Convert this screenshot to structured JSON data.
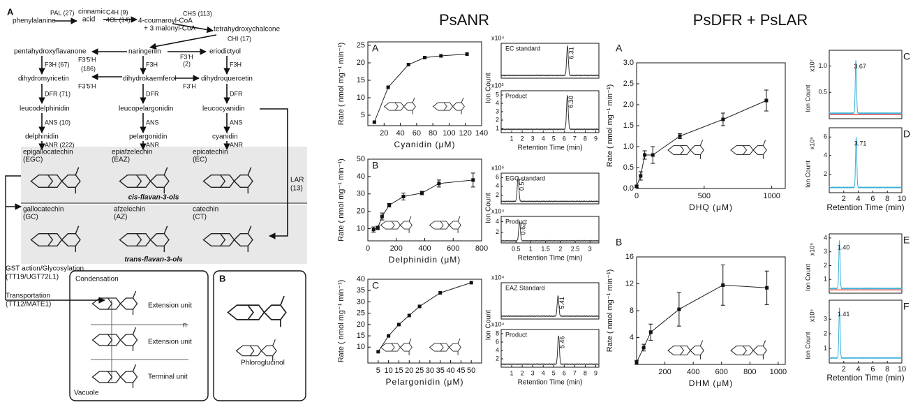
{
  "headings": {
    "anr": "PsANR",
    "dfr_lar": "PsDFR + PsLAR"
  },
  "pathway": {
    "labels": [
      "A",
      "phenylalanine",
      "PAL (27)",
      "cinnamic",
      "acid",
      "C4H (9)",
      "4CL (14)",
      "4-coumaroyl-CoA",
      "+ 3 malonyl-CoA",
      "CHS (113)",
      "tetrahydroxychalcone",
      "CHI (17)",
      "pentahydroxyflavanone",
      "naringenin",
      "eriodictyol",
      "F3'5'H",
      "F3'H",
      "(2)",
      "F3H (67)",
      "(186)",
      "F3H",
      "F3H",
      "dihydromyricetin",
      "dihydrokaemferol",
      "dihydroquercetin",
      "F3'5'H",
      "F3'H",
      "DFR (71)",
      "DFR",
      "DFR",
      "leucodelphinidin",
      "leucopelargonidin",
      "leucocyanidin",
      "ANS (10)",
      "ANS",
      "ANS",
      "delphinidin",
      "pelargonidin",
      "cyanidin",
      "ANR (222)",
      "ANR",
      "ANR",
      "epigallocatechin",
      "(EGC)",
      "epiafzelechin",
      "(EAZ)",
      "epicatechin",
      "(EC)",
      "cis-flavan-3-ols",
      "LAR",
      "(13)",
      "gallocatechin",
      "(GC)",
      "afzelechin",
      "(AZ)",
      "catechin",
      "(CT)",
      "trans-flavan-3-ols",
      "GST action/Glycosylation",
      "(TT19/UGT72L1)",
      "Transportation",
      "(TT12/MATE1)",
      "Condensation",
      "Extension unit",
      "n",
      "Extension unit",
      "Terminal unit",
      "Vacuole",
      "B",
      "Phloroglucinol"
    ]
  },
  "axis_texts": {
    "ion_count": "Ion Count",
    "retention_time": "Retention Time (min)"
  },
  "kinetics": [
    {
      "panel": "A",
      "xlabel": "Cyanidin (μM)",
      "ylabel": "Rate ( nmol mg⁻¹ min⁻¹)",
      "xlim": [
        0,
        140
      ],
      "ylim": [
        2,
        26
      ],
      "xticks": [
        20,
        40,
        60,
        80,
        100,
        120,
        140
      ],
      "yticks": [
        5,
        10,
        15,
        20,
        25
      ],
      "x": [
        8,
        25,
        50,
        70,
        90,
        122
      ],
      "values": [
        3,
        13,
        19.5,
        21.5,
        22,
        22.5
      ]
    },
    {
      "panel": "B",
      "xlabel": "Delphinidin (μM)",
      "ylabel": "Rate ( nmol mg⁻¹ min⁻¹)",
      "xlim": [
        0,
        800
      ],
      "ylim": [
        3,
        50
      ],
      "xticks": [
        0,
        200,
        400,
        600,
        800
      ],
      "yticks": [
        10,
        20,
        30,
        40,
        50
      ],
      "x": [
        40,
        70,
        100,
        150,
        250,
        380,
        500,
        740
      ],
      "values": [
        9.5,
        10.5,
        17,
        23.5,
        28.5,
        30.5,
        36,
        38
      ],
      "errors": [
        1.5,
        1,
        2,
        1,
        2,
        1,
        2,
        4
      ]
    },
    {
      "panel": "C",
      "xlabel": "Pelargonidin (μM)",
      "ylabel": "Rate ( nmol mg⁻¹ min⁻¹)",
      "xlim": [
        0,
        55
      ],
      "ylim": [
        3,
        40
      ],
      "xticks": [
        5,
        10,
        15,
        20,
        25,
        30,
        35,
        40,
        45,
        50
      ],
      "yticks": [
        10,
        15,
        20,
        25,
        30,
        35,
        40
      ],
      "x": [
        5,
        10,
        15,
        20,
        25,
        35,
        50
      ],
      "values": [
        8,
        15,
        20,
        24,
        28,
        34,
        38.5
      ]
    },
    {
      "panel": "A",
      "xlabel": "DHQ (μM)",
      "ylabel": "Rate ( nmol mg⁻¹ min⁻¹)",
      "xlim": [
        0,
        1100
      ],
      "ylim": [
        0,
        3
      ],
      "xticks": [
        0,
        500,
        1000
      ],
      "yticks": [
        {
          "value": 0,
          "label": "0.0"
        },
        0.5,
        {
          "value": 1,
          "label": "1.0"
        },
        1.5,
        {
          "value": 2,
          "label": "2.0"
        },
        2.5,
        {
          "value": 3,
          "label": "3.0"
        }
      ],
      "x": [
        0,
        30,
        60,
        120,
        320,
        640,
        960
      ],
      "values": [
        0.05,
        0.3,
        0.8,
        0.8,
        1.25,
        1.65,
        2.1
      ],
      "errors": [
        0.03,
        0.1,
        0.1,
        0.2,
        0.06,
        0.15,
        0.25
      ]
    },
    {
      "panel": "B",
      "xlabel": "DHM (μM)",
      "ylabel": "Rate ( nmol mg⁻¹ min⁻¹)",
      "xlim": [
        0,
        1050
      ],
      "ylim": [
        0,
        16
      ],
      "xticks": [
        200,
        400,
        600,
        800,
        1000
      ],
      "yticks": [
        4,
        8,
        12,
        16
      ],
      "x": [
        0,
        50,
        100,
        300,
        610,
        920
      ],
      "values": [
        0.3,
        2.5,
        4.8,
        8.2,
        11.8,
        11.4
      ],
      "errors": [
        0.3,
        0.5,
        1.2,
        2.5,
        3,
        2.5
      ]
    }
  ],
  "chromatograms": [
    {
      "label": "EC standard",
      "scale": "x10⁴",
      "xlim": [
        0,
        9.3
      ],
      "xticks": [],
      "ylim": [
        0,
        5
      ],
      "yticks": [],
      "peak": 6.31,
      "peak_height": 4.6,
      "color": "#333333"
    },
    {
      "label": "Product",
      "scale": "x10³",
      "xlim": [
        0,
        9.3
      ],
      "xticks": [
        1,
        2,
        3,
        4,
        5,
        6,
        7,
        8,
        9
      ],
      "ylim": [
        0.5,
        5.5
      ],
      "yticks": [
        1,
        2,
        3,
        4,
        5
      ],
      "peak": {
        "value": 6.3,
        "label": "6.30"
      },
      "peak_height": 5,
      "color": "#333333"
    },
    {
      "label": "EGC standard",
      "scale": "x10⁵",
      "xlim": [
        0,
        3.3
      ],
      "xticks": [],
      "ylim": [
        0,
        7
      ],
      "yticks": [
        2,
        4,
        6
      ],
      "peak": 0.57,
      "peak_height": 6,
      "color": "#333333"
    },
    {
      "label": "Product",
      "scale": "x10⁴",
      "xlim": [
        0,
        3.3
      ],
      "xticks": [
        0.5,
        1,
        1.5,
        2,
        2.5,
        3
      ],
      "ylim": [
        0,
        5
      ],
      "yticks": [
        2,
        4
      ],
      "peak": 0.62,
      "peak_height": 4,
      "color": "#333333"
    },
    {
      "label": "EAZ Standard",
      "scale": "x10⁴",
      "xlim": [
        0,
        9.3
      ],
      "xticks": [],
      "ylim": [
        0,
        5
      ],
      "yticks": [],
      "peak": 5.41,
      "peak_height": 3.2,
      "color": "#333333"
    },
    {
      "label": "Product",
      "scale": "x10⁴",
      "xlim": [
        0,
        9.3
      ],
      "xticks": [
        1,
        2,
        3,
        4,
        5,
        6,
        7,
        8,
        9
      ],
      "ylim": [
        0,
        9
      ],
      "yticks": [
        2,
        4,
        6,
        8
      ],
      "peak": 5.46,
      "peak_height": 7.6,
      "color": "#333333"
    },
    {
      "panel": "C",
      "scale": "x10⁷",
      "xlim": [
        0,
        10
      ],
      "xticks": [],
      "ylim": [
        0,
        1.3
      ],
      "yticks": [
        0.5,
        {
          "value": 1,
          "label": "1.0"
        }
      ],
      "peak": 3.67,
      "peak_height": 1.12,
      "color": "#3ab0d8",
      "control_color": "#e03030"
    },
    {
      "panel": "D",
      "scale": "x10⁵",
      "xlim": [
        0,
        10
      ],
      "xticks": [
        2,
        4,
        6,
        8,
        10
      ],
      "ylim": [
        0,
        7
      ],
      "yticks": [
        2,
        4,
        6
      ],
      "peak": 3.71,
      "peak_height": 6,
      "color": "#3ab0d8"
    },
    {
      "panel": "E",
      "scale": "x10⁵",
      "xlim": [
        0,
        10
      ],
      "xticks": [],
      "ylim": [
        0,
        4.3
      ],
      "yticks": [
        1,
        2,
        3,
        4
      ],
      "peak": {
        "value": 1.4,
        "label": "1.40"
      },
      "peak_height": 3.8,
      "color": "#3ab0d8",
      "control_color": "#e03030"
    },
    {
      "panel": "F",
      "scale": "x10⁶",
      "xlim": [
        0,
        10
      ],
      "xticks": [
        2,
        4,
        6,
        8,
        10
      ],
      "ylim": [
        0,
        4.3
      ],
      "yticks": [
        1,
        2,
        3
      ],
      "peak": 1.41,
      "peak_height": 3.8,
      "color": "#3ab0d8"
    }
  ]
}
